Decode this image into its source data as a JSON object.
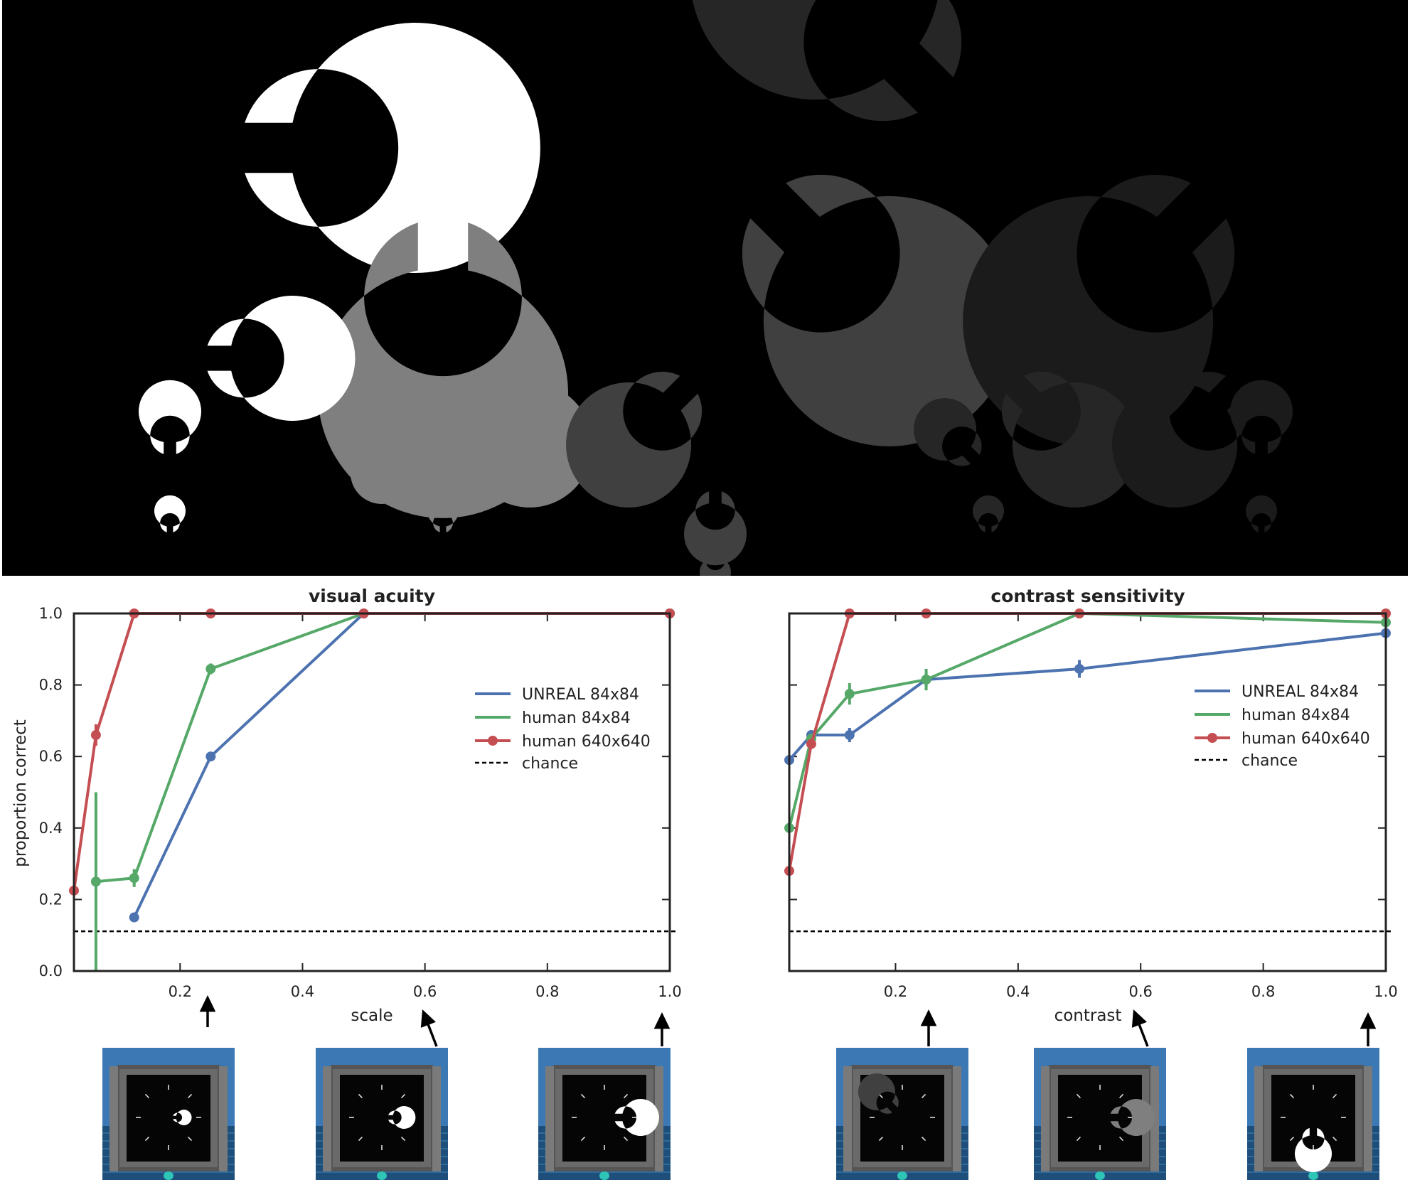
{
  "stimuli": {
    "gray_levels": [
      "#ffffff",
      "#7f7f7f",
      "#404040",
      "#262626",
      "#1b1b1b"
    ],
    "gap_orientations_deg": [
      [
        0,
        270,
        315,
        135,
        225
      ],
      [
        0,
        315,
        225,
        315,
        225
      ],
      [
        90,
        180,
        270,
        135,
        90
      ],
      [
        90,
        90,
        270,
        90,
        90
      ]
    ]
  },
  "chart_data": [
    {
      "type": "line",
      "title": "visual acuity",
      "xlabel": "scale",
      "ylabel": "proportion correct",
      "xlim": [
        0.0266,
        1.0
      ],
      "ylim": [
        0.0,
        1.0
      ],
      "xticks": [
        "0.2",
        "0.4",
        "0.6",
        "0.8",
        "1.0"
      ],
      "yticks": [
        "0.0",
        "0.2",
        "0.4",
        "0.6",
        "0.8",
        "1.0"
      ],
      "legend_position": "right-center",
      "chance": 0.111,
      "series": [
        {
          "name": "UNREAL 84x84",
          "color": "#4c72b0",
          "x": [
            0.125,
            0.25,
            0.5,
            1.0
          ],
          "y": [
            0.15,
            0.6,
            1.0,
            1.0
          ],
          "err": [
            0.01,
            0.01,
            0.005,
            0.0
          ],
          "marker": true
        },
        {
          "name": "human 84x84",
          "color": "#55a868",
          "x": [
            0.0625,
            0.125,
            0.25,
            0.5,
            1.0
          ],
          "y": [
            0.25,
            0.26,
            0.845,
            1.0,
            1.0
          ],
          "err": [
            0.25,
            0.025,
            0.015,
            0.0,
            0.0
          ],
          "marker": true
        },
        {
          "name": "human 640x640",
          "color": "#c44e52",
          "x": [
            0.0266,
            0.0625,
            0.125,
            0.25,
            0.5,
            1.0
          ],
          "y": [
            0.225,
            0.66,
            1.0,
            1.0,
            1.0,
            1.0
          ],
          "err": [
            0.0,
            0.03,
            0.0,
            0.0,
            0.0,
            0.0
          ],
          "marker": true
        }
      ]
    },
    {
      "type": "line",
      "title": "contrast sensitivity",
      "xlabel": "contrast",
      "ylabel": "",
      "xlim": [
        0.0266,
        1.0
      ],
      "ylim": [
        0.0,
        1.0
      ],
      "xticks": [
        "0.2",
        "0.4",
        "0.6",
        "0.8",
        "1.0"
      ],
      "yticks": [],
      "legend_position": "right-center",
      "chance": 0.111,
      "series": [
        {
          "name": "UNREAL 84x84",
          "color": "#4c72b0",
          "x": [
            0.0266,
            0.0625,
            0.125,
            0.25,
            0.5,
            1.0
          ],
          "y": [
            0.59,
            0.66,
            0.66,
            0.815,
            0.845,
            0.945
          ],
          "err": [
            0.0,
            0.01,
            0.02,
            0.02,
            0.025,
            0.01
          ],
          "marker": true
        },
        {
          "name": "human 84x84",
          "color": "#55a868",
          "x": [
            0.0266,
            0.0625,
            0.125,
            0.25,
            0.5,
            1.0
          ],
          "y": [
            0.4,
            0.65,
            0.775,
            0.815,
            1.0,
            0.975
          ],
          "err": [
            0.0,
            0.0,
            0.03,
            0.03,
            0.0,
            0.005
          ],
          "marker": true
        },
        {
          "name": "human 640x640",
          "color": "#c44e52",
          "x": [
            0.0266,
            0.0625,
            0.125,
            0.25,
            0.5,
            1.0
          ],
          "y": [
            0.28,
            0.635,
            1.0,
            1.0,
            1.0,
            1.0
          ],
          "err": [
            0.0,
            0.01,
            0.0,
            0.0,
            0.0,
            0.0
          ],
          "marker": true
        }
      ]
    }
  ],
  "legend_extra": {
    "chance_label": "chance"
  },
  "thumbnails": [
    {
      "chart": 0,
      "x_value": 0.25,
      "ring_color": "#ffffff",
      "ring_scale": 0.25
    },
    {
      "chart": 0,
      "x_value": 0.5,
      "ring_color": "#ffffff",
      "ring_scale": 0.5
    },
    {
      "chart": 0,
      "x_value": 1.0,
      "ring_color": "#ffffff",
      "ring_scale": 1.0
    },
    {
      "chart": 1,
      "x_value": 0.25,
      "ring_color": "#404040",
      "ring_scale": 1.0
    },
    {
      "chart": 1,
      "x_value": 0.5,
      "ring_color": "#7f7f7f",
      "ring_scale": 1.0
    },
    {
      "chart": 1,
      "x_value": 1.0,
      "ring_color": "#ffffff",
      "ring_scale": 1.0
    }
  ]
}
